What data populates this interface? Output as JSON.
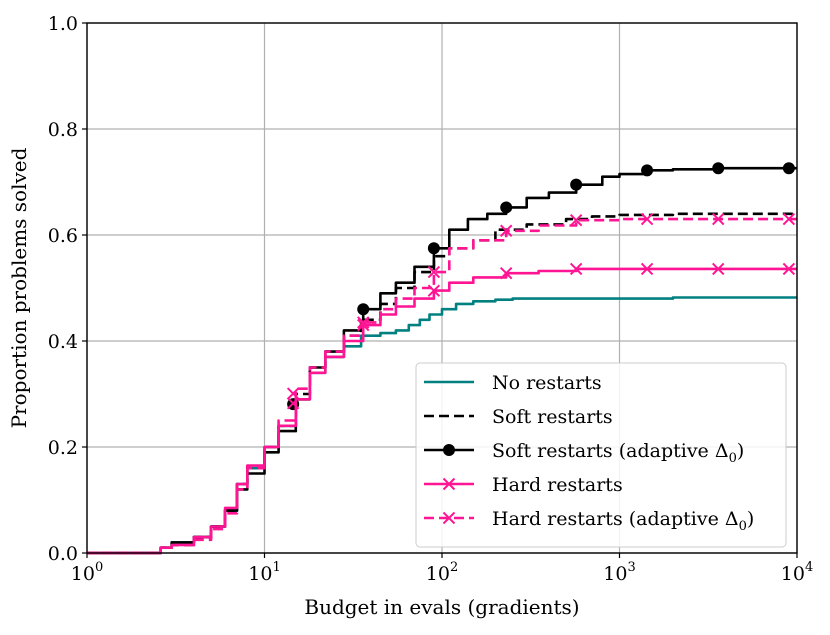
{
  "chart_data": {
    "type": "line",
    "title": "",
    "xlabel": "Budget in evals (gradients)",
    "ylabel": "Proportion problems solved",
    "xscale": "log",
    "xlim": [
      1,
      10000
    ],
    "ylim": [
      0,
      1
    ],
    "x_ticks": [
      {
        "value": 1,
        "base": "10",
        "exp": "0"
      },
      {
        "value": 10,
        "base": "10",
        "exp": "1"
      },
      {
        "value": 100,
        "base": "10",
        "exp": "2"
      },
      {
        "value": 1000,
        "base": "10",
        "exp": "3"
      },
      {
        "value": 10000,
        "base": "10",
        "exp": "4"
      }
    ],
    "y_ticks": [
      {
        "value": 0,
        "label": "0.0"
      },
      {
        "value": 0.2,
        "label": "0.2"
      },
      {
        "value": 0.4,
        "label": "0.4"
      },
      {
        "value": 0.6,
        "label": "0.6"
      },
      {
        "value": 0.8,
        "label": "0.8"
      },
      {
        "value": 1,
        "label": "1.0"
      }
    ],
    "grid": true,
    "legend_position": "lower-right",
    "series": [
      {
        "name": "No restarts",
        "color": "#008080",
        "dash": "solid",
        "marker": "none",
        "x": [
          1,
          2.3,
          2.6,
          3,
          4,
          5,
          6,
          7,
          8,
          10,
          12,
          15,
          18,
          22,
          28,
          35,
          45,
          55,
          65,
          75,
          85,
          100,
          120,
          150,
          200,
          250,
          300,
          500,
          1000,
          1500,
          1800,
          2000,
          3000,
          5000,
          10000
        ],
        "y": [
          0,
          0,
          0.01,
          0.02,
          0.03,
          0.05,
          0.08,
          0.13,
          0.16,
          0.2,
          0.24,
          0.29,
          0.34,
          0.37,
          0.39,
          0.41,
          0.415,
          0.42,
          0.43,
          0.44,
          0.45,
          0.46,
          0.47,
          0.475,
          0.478,
          0.48,
          0.48,
          0.48,
          0.48,
          0.48,
          0.48,
          0.482,
          0.482,
          0.482,
          0.482
        ]
      },
      {
        "name": "Soft restarts",
        "color": "#000000",
        "dash": "dashed",
        "marker": "none",
        "x": [
          1,
          2.3,
          2.6,
          3,
          4,
          5,
          6,
          7,
          8,
          10,
          12,
          15,
          18,
          22,
          28,
          35,
          45,
          55,
          70,
          90,
          110,
          150,
          200,
          300,
          500,
          700,
          1000,
          2000,
          5000,
          10000
        ],
        "y": [
          0,
          0,
          0.01,
          0.015,
          0.03,
          0.05,
          0.08,
          0.13,
          0.16,
          0.2,
          0.24,
          0.3,
          0.35,
          0.38,
          0.41,
          0.44,
          0.47,
          0.5,
          0.53,
          0.56,
          0.575,
          0.59,
          0.61,
          0.62,
          0.63,
          0.635,
          0.638,
          0.64,
          0.64,
          0.64
        ]
      },
      {
        "name": "Soft restarts (adaptive Δ0)",
        "color": "#000000",
        "dash": "solid",
        "marker": "circle",
        "marker_x": [
          14.5,
          36,
          90,
          230,
          570,
          1430,
          3600,
          9000
        ],
        "x": [
          1,
          2.3,
          2.6,
          3,
          4,
          5,
          6,
          7,
          8,
          10,
          12,
          15,
          18,
          22,
          28,
          36,
          45,
          55,
          70,
          90,
          110,
          140,
          180,
          230,
          300,
          400,
          570,
          800,
          1000,
          1430,
          2000,
          3600,
          5000,
          10000
        ],
        "y": [
          0,
          0,
          0.01,
          0.02,
          0.03,
          0.05,
          0.08,
          0.12,
          0.15,
          0.19,
          0.23,
          0.29,
          0.35,
          0.38,
          0.42,
          0.46,
          0.49,
          0.51,
          0.54,
          0.575,
          0.61,
          0.63,
          0.64,
          0.652,
          0.67,
          0.68,
          0.695,
          0.71,
          0.715,
          0.722,
          0.724,
          0.726,
          0.726,
          0.726
        ]
      },
      {
        "name": "Hard restarts",
        "color": "#ff1493",
        "dash": "solid",
        "marker": "x",
        "marker_x": [
          14.5,
          36,
          90,
          230,
          570,
          1430,
          3600,
          9000
        ],
        "x": [
          1,
          2.3,
          2.6,
          3,
          4,
          5,
          6,
          7,
          8,
          10,
          12,
          15,
          18,
          22,
          28,
          36,
          45,
          55,
          70,
          90,
          110,
          150,
          230,
          350,
          570,
          1000,
          1430,
          3600,
          10000
        ],
        "y": [
          0,
          0,
          0.01,
          0.015,
          0.03,
          0.05,
          0.085,
          0.13,
          0.165,
          0.2,
          0.24,
          0.29,
          0.34,
          0.37,
          0.4,
          0.43,
          0.45,
          0.465,
          0.48,
          0.495,
          0.51,
          0.52,
          0.528,
          0.532,
          0.536,
          0.536,
          0.536,
          0.536,
          0.536
        ]
      },
      {
        "name": "Hard restarts (adaptive Δ0)",
        "color": "#ff1493",
        "dash": "dashed",
        "marker": "x",
        "marker_x": [
          14.5,
          36,
          90,
          230,
          570,
          1430,
          3600,
          9000
        ],
        "x": [
          1,
          2.3,
          2.6,
          3,
          4,
          5,
          6,
          7,
          8,
          10,
          12,
          15,
          18,
          22,
          28,
          36,
          45,
          55,
          70,
          90,
          110,
          150,
          230,
          350,
          570,
          1000,
          1430,
          3600,
          10000
        ],
        "y": [
          0,
          0,
          0.01,
          0.015,
          0.025,
          0.045,
          0.075,
          0.12,
          0.16,
          0.2,
          0.25,
          0.31,
          0.35,
          0.38,
          0.41,
          0.435,
          0.46,
          0.48,
          0.5,
          0.53,
          0.575,
          0.59,
          0.608,
          0.618,
          0.628,
          0.63,
          0.63,
          0.63,
          0.63
        ]
      }
    ]
  }
}
